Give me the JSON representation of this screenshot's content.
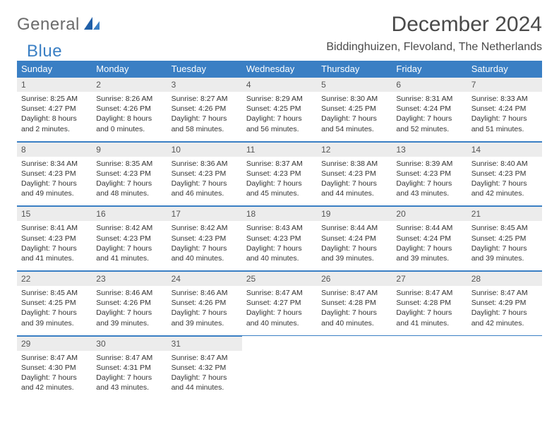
{
  "logo": {
    "text1": "General",
    "text2": "Blue"
  },
  "title": "December 2024",
  "location": "Biddinghuizen, Flevoland, The Netherlands",
  "colors": {
    "header_bg": "#3a7fc4",
    "header_text": "#ffffff",
    "daynum_bg": "#ececec",
    "border": "#3a7fc4",
    "body_text": "#333333",
    "title_text": "#4a4a4a",
    "logo_gray": "#6b6b6b",
    "logo_blue": "#3a7fc4"
  },
  "weekdays": [
    "Sunday",
    "Monday",
    "Tuesday",
    "Wednesday",
    "Thursday",
    "Friday",
    "Saturday"
  ],
  "weeks": [
    [
      {
        "n": "1",
        "sr": "Sunrise: 8:25 AM",
        "ss": "Sunset: 4:27 PM",
        "dl": "Daylight: 8 hours and 2 minutes."
      },
      {
        "n": "2",
        "sr": "Sunrise: 8:26 AM",
        "ss": "Sunset: 4:26 PM",
        "dl": "Daylight: 8 hours and 0 minutes."
      },
      {
        "n": "3",
        "sr": "Sunrise: 8:27 AM",
        "ss": "Sunset: 4:26 PM",
        "dl": "Daylight: 7 hours and 58 minutes."
      },
      {
        "n": "4",
        "sr": "Sunrise: 8:29 AM",
        "ss": "Sunset: 4:25 PM",
        "dl": "Daylight: 7 hours and 56 minutes."
      },
      {
        "n": "5",
        "sr": "Sunrise: 8:30 AM",
        "ss": "Sunset: 4:25 PM",
        "dl": "Daylight: 7 hours and 54 minutes."
      },
      {
        "n": "6",
        "sr": "Sunrise: 8:31 AM",
        "ss": "Sunset: 4:24 PM",
        "dl": "Daylight: 7 hours and 52 minutes."
      },
      {
        "n": "7",
        "sr": "Sunrise: 8:33 AM",
        "ss": "Sunset: 4:24 PM",
        "dl": "Daylight: 7 hours and 51 minutes."
      }
    ],
    [
      {
        "n": "8",
        "sr": "Sunrise: 8:34 AM",
        "ss": "Sunset: 4:23 PM",
        "dl": "Daylight: 7 hours and 49 minutes."
      },
      {
        "n": "9",
        "sr": "Sunrise: 8:35 AM",
        "ss": "Sunset: 4:23 PM",
        "dl": "Daylight: 7 hours and 48 minutes."
      },
      {
        "n": "10",
        "sr": "Sunrise: 8:36 AM",
        "ss": "Sunset: 4:23 PM",
        "dl": "Daylight: 7 hours and 46 minutes."
      },
      {
        "n": "11",
        "sr": "Sunrise: 8:37 AM",
        "ss": "Sunset: 4:23 PM",
        "dl": "Daylight: 7 hours and 45 minutes."
      },
      {
        "n": "12",
        "sr": "Sunrise: 8:38 AM",
        "ss": "Sunset: 4:23 PM",
        "dl": "Daylight: 7 hours and 44 minutes."
      },
      {
        "n": "13",
        "sr": "Sunrise: 8:39 AM",
        "ss": "Sunset: 4:23 PM",
        "dl": "Daylight: 7 hours and 43 minutes."
      },
      {
        "n": "14",
        "sr": "Sunrise: 8:40 AM",
        "ss": "Sunset: 4:23 PM",
        "dl": "Daylight: 7 hours and 42 minutes."
      }
    ],
    [
      {
        "n": "15",
        "sr": "Sunrise: 8:41 AM",
        "ss": "Sunset: 4:23 PM",
        "dl": "Daylight: 7 hours and 41 minutes."
      },
      {
        "n": "16",
        "sr": "Sunrise: 8:42 AM",
        "ss": "Sunset: 4:23 PM",
        "dl": "Daylight: 7 hours and 41 minutes."
      },
      {
        "n": "17",
        "sr": "Sunrise: 8:42 AM",
        "ss": "Sunset: 4:23 PM",
        "dl": "Daylight: 7 hours and 40 minutes."
      },
      {
        "n": "18",
        "sr": "Sunrise: 8:43 AM",
        "ss": "Sunset: 4:23 PM",
        "dl": "Daylight: 7 hours and 40 minutes."
      },
      {
        "n": "19",
        "sr": "Sunrise: 8:44 AM",
        "ss": "Sunset: 4:24 PM",
        "dl": "Daylight: 7 hours and 39 minutes."
      },
      {
        "n": "20",
        "sr": "Sunrise: 8:44 AM",
        "ss": "Sunset: 4:24 PM",
        "dl": "Daylight: 7 hours and 39 minutes."
      },
      {
        "n": "21",
        "sr": "Sunrise: 8:45 AM",
        "ss": "Sunset: 4:25 PM",
        "dl": "Daylight: 7 hours and 39 minutes."
      }
    ],
    [
      {
        "n": "22",
        "sr": "Sunrise: 8:45 AM",
        "ss": "Sunset: 4:25 PM",
        "dl": "Daylight: 7 hours and 39 minutes."
      },
      {
        "n": "23",
        "sr": "Sunrise: 8:46 AM",
        "ss": "Sunset: 4:26 PM",
        "dl": "Daylight: 7 hours and 39 minutes."
      },
      {
        "n": "24",
        "sr": "Sunrise: 8:46 AM",
        "ss": "Sunset: 4:26 PM",
        "dl": "Daylight: 7 hours and 39 minutes."
      },
      {
        "n": "25",
        "sr": "Sunrise: 8:47 AM",
        "ss": "Sunset: 4:27 PM",
        "dl": "Daylight: 7 hours and 40 minutes."
      },
      {
        "n": "26",
        "sr": "Sunrise: 8:47 AM",
        "ss": "Sunset: 4:28 PM",
        "dl": "Daylight: 7 hours and 40 minutes."
      },
      {
        "n": "27",
        "sr": "Sunrise: 8:47 AM",
        "ss": "Sunset: 4:28 PM",
        "dl": "Daylight: 7 hours and 41 minutes."
      },
      {
        "n": "28",
        "sr": "Sunrise: 8:47 AM",
        "ss": "Sunset: 4:29 PM",
        "dl": "Daylight: 7 hours and 42 minutes."
      }
    ],
    [
      {
        "n": "29",
        "sr": "Sunrise: 8:47 AM",
        "ss": "Sunset: 4:30 PM",
        "dl": "Daylight: 7 hours and 42 minutes."
      },
      {
        "n": "30",
        "sr": "Sunrise: 8:47 AM",
        "ss": "Sunset: 4:31 PM",
        "dl": "Daylight: 7 hours and 43 minutes."
      },
      {
        "n": "31",
        "sr": "Sunrise: 8:47 AM",
        "ss": "Sunset: 4:32 PM",
        "dl": "Daylight: 7 hours and 44 minutes."
      },
      {
        "empty": true
      },
      {
        "empty": true
      },
      {
        "empty": true
      },
      {
        "empty": true
      }
    ]
  ]
}
